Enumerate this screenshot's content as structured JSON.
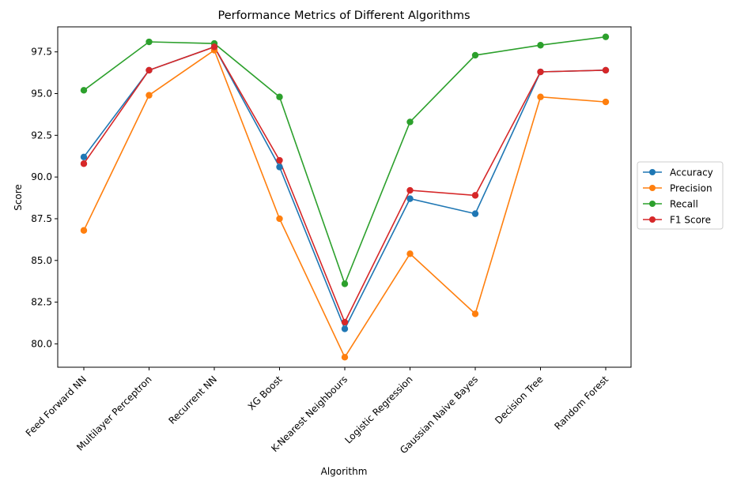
{
  "chart_data": {
    "type": "line",
    "title": "Performance Metrics of Different Algorithms",
    "xlabel": "Algorithm",
    "ylabel": "Score",
    "categories": [
      "Feed Forward NN",
      "Multilayer Perceptron",
      "Recurrent NN",
      "XG Boost",
      "K-Nearest Neighbours",
      "Logistic Regression",
      "Gaussian Naive Bayes",
      "Decision Tree",
      "Random Forest"
    ],
    "ylim": [
      78.6,
      99.0
    ],
    "yticks": [
      80.0,
      82.5,
      85.0,
      87.5,
      90.0,
      92.5,
      95.0,
      97.5
    ],
    "ytick_labels": [
      "80.0",
      "82.5",
      "85.0",
      "87.5",
      "90.0",
      "92.5",
      "95.0",
      "97.5"
    ],
    "grid": false,
    "legend_placement": "center-right-outside",
    "series": [
      {
        "name": "Accuracy",
        "color": "#1f77b4",
        "values": [
          91.2,
          96.4,
          97.8,
          90.6,
          80.9,
          88.7,
          87.8,
          96.3,
          96.4
        ]
      },
      {
        "name": "Precision",
        "color": "#ff7f0e",
        "values": [
          86.8,
          94.9,
          97.6,
          87.5,
          79.2,
          85.4,
          81.8,
          94.8,
          94.5
        ]
      },
      {
        "name": "Recall",
        "color": "#2ca02c",
        "values": [
          95.2,
          98.1,
          98.0,
          94.8,
          83.6,
          93.3,
          97.3,
          97.9,
          98.4
        ]
      },
      {
        "name": "F1 Score",
        "color": "#d62728",
        "values": [
          90.8,
          96.4,
          97.8,
          91.0,
          81.3,
          89.2,
          88.9,
          96.3,
          96.4
        ]
      }
    ]
  }
}
